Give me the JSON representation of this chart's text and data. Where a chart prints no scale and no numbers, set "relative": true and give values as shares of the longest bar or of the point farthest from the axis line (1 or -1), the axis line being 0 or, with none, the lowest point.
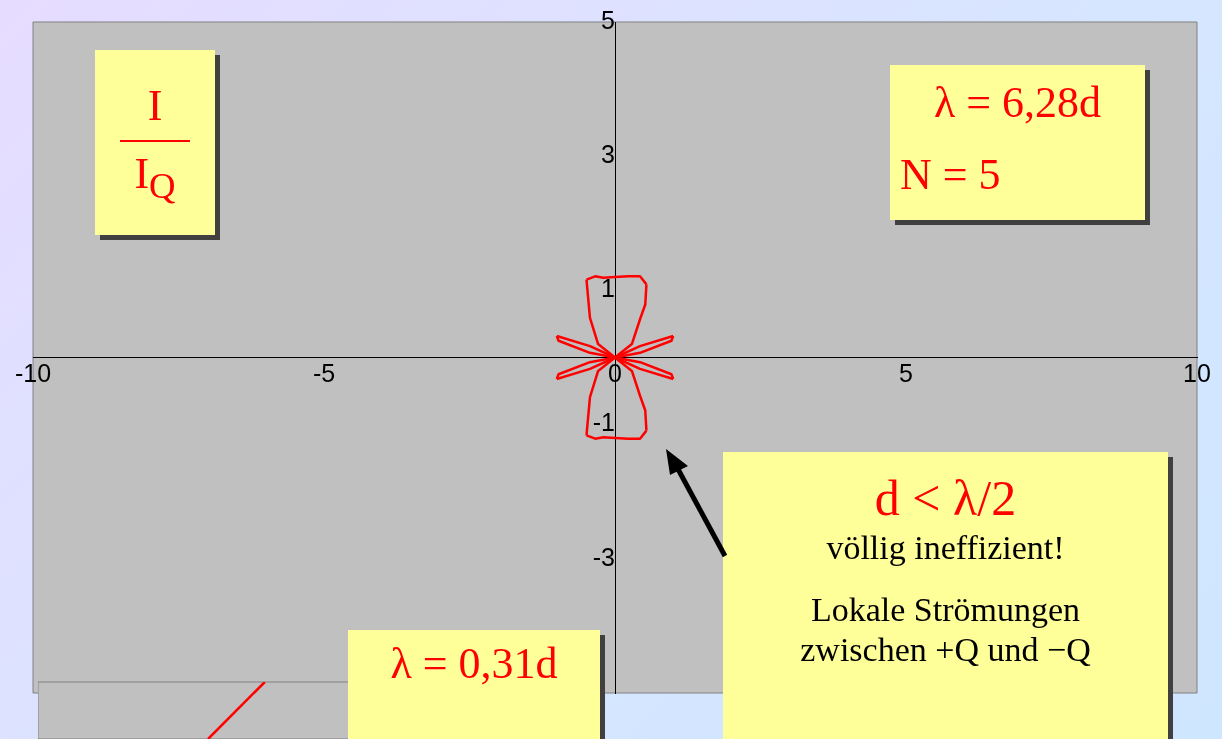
{
  "chart_data": [
    {
      "type": "line",
      "xlim": [
        -10,
        10
      ],
      "xticks": [
        -10,
        -5,
        0,
        5,
        10
      ],
      "ylim": [
        -5,
        5
      ],
      "yticks": [
        -3,
        -1,
        1,
        3,
        5
      ],
      "series": [
        {
          "color": "#ff0000",
          "x": [
            -0.49,
            -0.43,
            -0.29,
            0,
            0.29,
            0.43,
            0.52,
            0.54
          ],
          "values": [
            1.16,
            0.59,
            0.2,
            0,
            -0.2,
            -0.57,
            -0.79,
            -1.09
          ]
        },
        {
          "color": "#ff0000",
          "x": [
            -0.49,
            -0.43,
            -0.29,
            0,
            0.29,
            0.43,
            0.52,
            0.54
          ],
          "values": [
            -1.16,
            -0.59,
            -0.2,
            0,
            0.2,
            0.57,
            0.79,
            1.09
          ]
        },
        {
          "color": "#ff0000",
          "x": [
            -0.49,
            -0.34,
            -0.2,
            0,
            0.23,
            0.43,
            0.54
          ],
          "values": [
            1.16,
            1.21,
            1.19,
            1.2,
            1.21,
            1.21,
            1.09
          ]
        },
        {
          "color": "#ff0000",
          "x": [
            -0.49,
            -0.34,
            -0.2,
            0,
            0.23,
            0.43,
            0.54
          ],
          "values": [
            -1.16,
            -1.21,
            -1.19,
            -1.2,
            -1.21,
            -1.21,
            -1.09
          ]
        },
        {
          "color": "#ff0000",
          "x": [
            -1.0,
            -0.43,
            0,
            0.43,
            1.0
          ],
          "values": [
            0.32,
            0.17,
            0,
            -0.17,
            -0.32
          ]
        },
        {
          "color": "#ff0000",
          "x": [
            -1.0,
            -0.97,
            -0.43,
            0,
            0.43,
            0.97,
            1.0
          ],
          "values": [
            0.32,
            0.25,
            0.07,
            0,
            -0.07,
            -0.25,
            -0.32
          ]
        },
        {
          "color": "#ff0000",
          "x": [
            -1.0,
            -0.43,
            0,
            0.43,
            1.0
          ],
          "values": [
            -0.32,
            -0.17,
            0,
            0.17,
            0.32
          ]
        },
        {
          "color": "#ff0000",
          "x": [
            -1.0,
            -0.97,
            -0.43,
            0,
            0.43,
            0.97,
            1.0
          ],
          "values": [
            -0.32,
            -0.25,
            -0.07,
            0,
            0.07,
            0.25,
            0.32
          ]
        }
      ],
      "annotations": [
        "I",
        "I$_{Q}$",
        "λ = 6,28d",
        "N = 5",
        "d < λ/2",
        "völlig ineffizient!",
        "Lokale Strömungen zwischen +Q und −Q"
      ]
    },
    {
      "type": "line",
      "relative": true,
      "categories": [
        null,
        null,
        null,
        null,
        null,
        null,
        null,
        null,
        null,
        null,
        null
      ],
      "series": [
        {
          "color": "#ff0000",
          "values": [
            null,
            null,
            null,
            0,
            1,
            null,
            null,
            null,
            null,
            null,
            null
          ]
        }
      ],
      "annotations": [
        "λ = 0,31d"
      ]
    }
  ]
}
